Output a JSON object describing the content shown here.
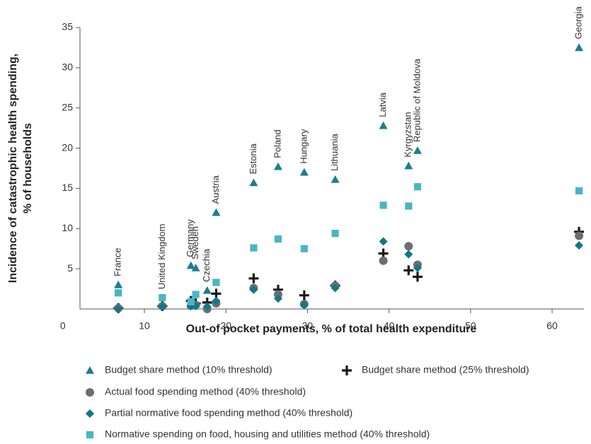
{
  "chart_data": {
    "type": "scatter",
    "x_label": "Out-of pocket payments, % of total health expenditure",
    "y_label": [
      "Incidence of catastrophic health spending,",
      "% of households"
    ],
    "point_labels": [
      "France",
      "United Kingdom",
      "Germany",
      "Sweden",
      "Czechia",
      "Austria",
      "Estonia",
      "Poland",
      "Hungary",
      "Lithuania",
      "Latvia",
      "Kyrgyzstan",
      "Republic of Moldova",
      "Georgia"
    ],
    "x": [
      6.8,
      12.2,
      15.7,
      16.3,
      17.7,
      18.8,
      23.4,
      26.4,
      29.6,
      33.4,
      39.3,
      42.4,
      43.5,
      63.3
    ],
    "series": [
      {
        "name": "Budget share method (10% threshold)",
        "marker": "triangle",
        "color": "#1b7f8d",
        "values": [
          3.0,
          null,
          5.4,
          5.1,
          2.3,
          12.0,
          15.7,
          17.7,
          17.0,
          16.1,
          22.8,
          17.8,
          19.7,
          32.5
        ]
      },
      {
        "name": "Budget share method (25% threshold)",
        "marker": "plus",
        "color": "#1a1a1a",
        "values": [
          0.1,
          0.35,
          1.0,
          0.7,
          0.8,
          1.9,
          3.8,
          2.4,
          1.7,
          2.9,
          6.9,
          4.8,
          4.0,
          9.6
        ]
      },
      {
        "name": "Actual food spending method (40% threshold)",
        "marker": "circle",
        "color": "#6d6e71",
        "values": [
          0.1,
          0.35,
          0.4,
          0.5,
          0,
          0.7,
          2.6,
          1.8,
          0.6,
          2.9,
          6.0,
          7.8,
          5.5,
          9.1
        ]
      },
      {
        "name": "Partial normative food spending method  (40% threshold)",
        "marker": "diamond",
        "color": "#0f7886",
        "values": [
          0,
          0.3,
          0.35,
          0.35,
          0.3,
          1.0,
          2.4,
          1.3,
          0.5,
          2.6,
          8.4,
          6.8,
          5.1,
          7.9
        ]
      },
      {
        "name": "Normative spending on food, housing and utilities method (40% threshold)",
        "marker": "square",
        "color": "#4ab6c2",
        "values": [
          2.0,
          1.4,
          0.9,
          1.8,
          null,
          3.3,
          7.6,
          8.7,
          7.5,
          9.4,
          12.9,
          12.8,
          15.2,
          14.7
        ]
      }
    ],
    "xlim": [
      2.1,
      63.9
    ],
    "ylim": [
      0,
      35
    ],
    "xticks": [
      0,
      10,
      20,
      30,
      40,
      50,
      60
    ],
    "yticks": [
      5,
      10,
      15,
      20,
      25,
      30,
      35
    ]
  }
}
